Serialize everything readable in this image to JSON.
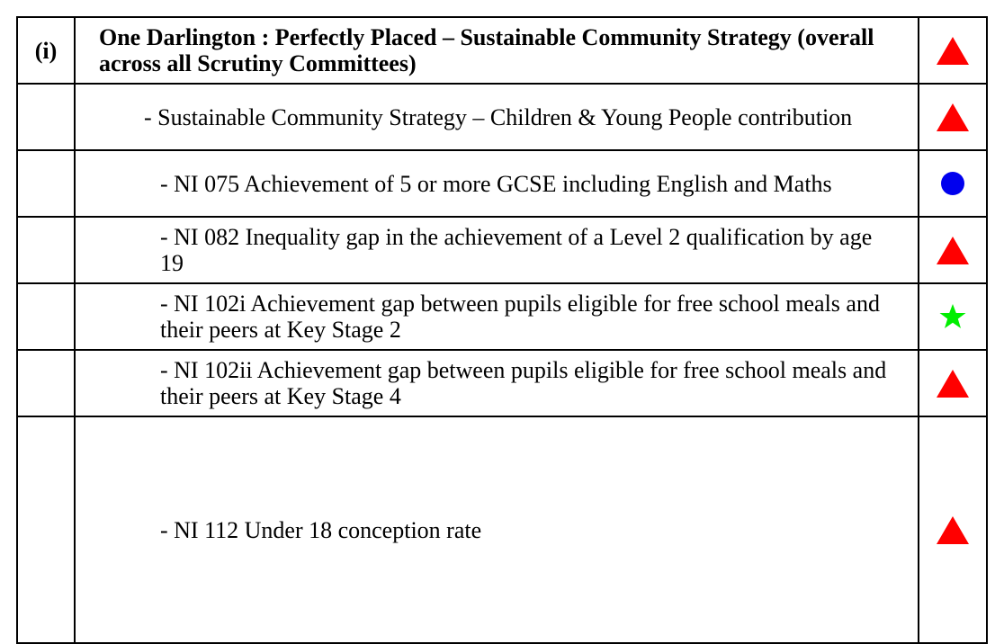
{
  "table": {
    "rows": [
      [
        "(i)",
        "One Darlington : Perfectly Placed – Sustainable Community Strategy (overall across all Scrutiny Committees)"
      ],
      [
        "",
        "- Sustainable Community Strategy – Children & Young People contribution"
      ],
      [
        "",
        "- NI 075 Achievement of 5 or more GCSE including English and Maths"
      ],
      [
        "",
        "- NI 082 Inequality gap in the achievement of a Level 2 qualification by age 19"
      ],
      [
        "",
        "- NI 102i Achievement gap between pupils eligible for free school meals and their peers at Key Stage 2"
      ],
      [
        "",
        "- NI 102ii Achievement gap between pupils eligible for free school meals and their peers at Key Stage 4"
      ],
      [
        "",
        "- NI 112 Under 18 conception rate"
      ]
    ]
  }
}
